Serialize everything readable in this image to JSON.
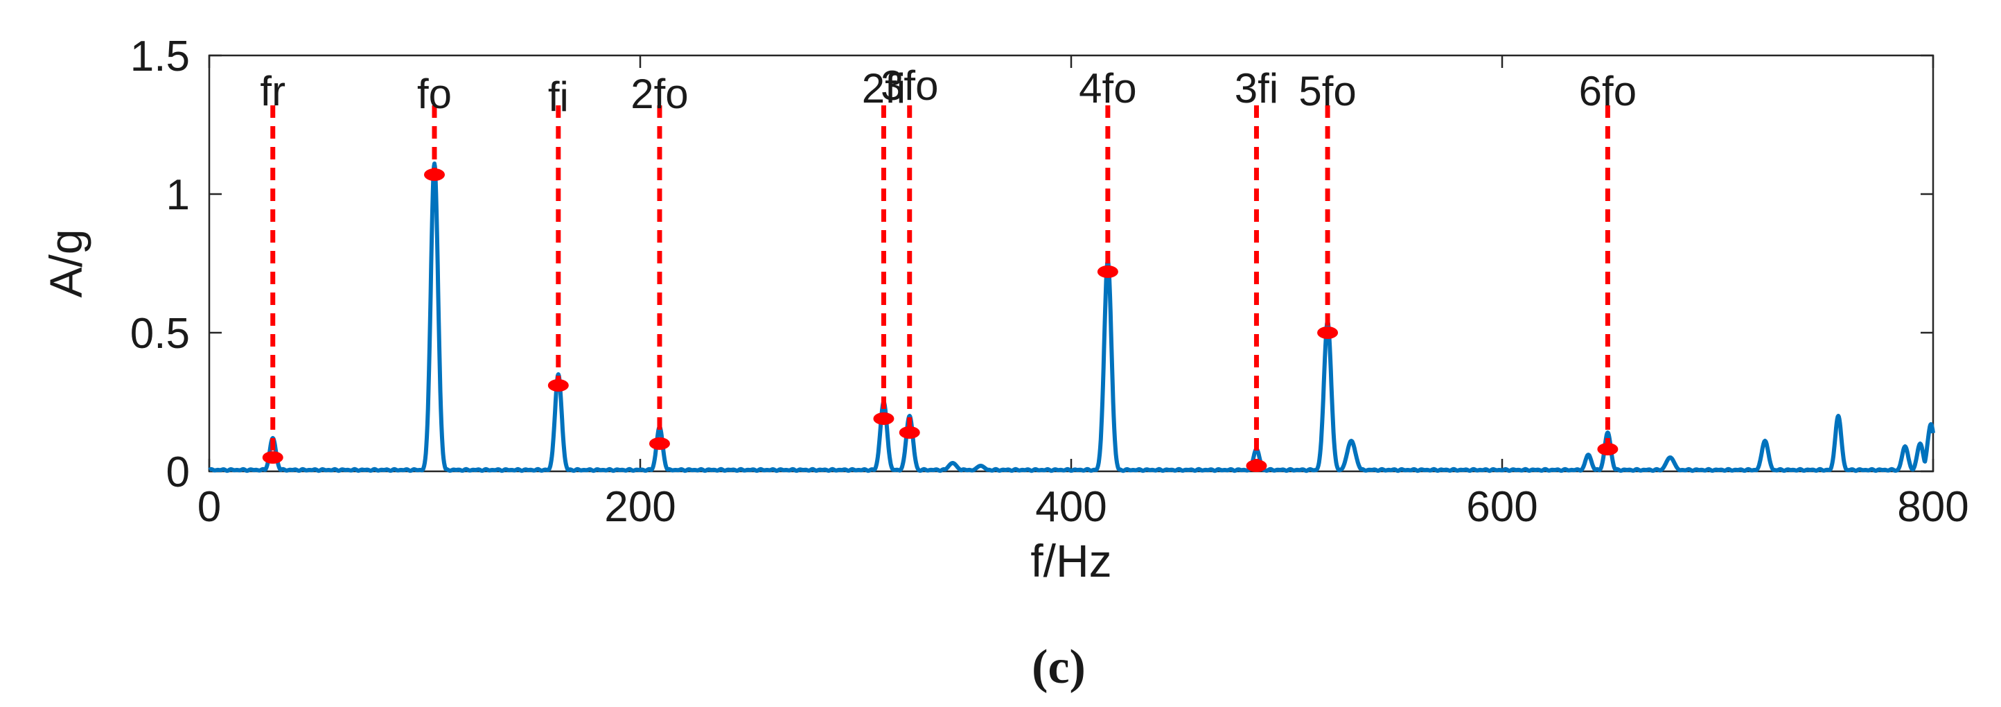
{
  "chart_data": {
    "type": "line",
    "title": "",
    "caption": "(c)",
    "xlabel": "f/Hz",
    "ylabel": "A/g",
    "xlim": [
      0,
      800
    ],
    "ylim": [
      0,
      1.5
    ],
    "xticks": [
      0,
      200,
      400,
      600,
      800
    ],
    "yticks": [
      0,
      0.5,
      1,
      1.5
    ],
    "xtick_labels": [
      "0",
      "200",
      "400",
      "600",
      "800"
    ],
    "ytick_labels": [
      "0",
      "0.5",
      "1",
      "1.5"
    ],
    "grid": false,
    "series": [
      {
        "color": "#0072BD",
        "baseline": 0.005,
        "peaks": [
          {
            "x": 29.5,
            "y": 0.12,
            "w": 2.2
          },
          {
            "x": 104.5,
            "y": 1.11,
            "w": 2.6
          },
          {
            "x": 162,
            "y": 0.35,
            "w": 2.4
          },
          {
            "x": 209,
            "y": 0.16,
            "w": 2.2
          },
          {
            "x": 313,
            "y": 0.25,
            "w": 2.4
          },
          {
            "x": 325,
            "y": 0.2,
            "w": 2.4
          },
          {
            "x": 345,
            "y": 0.03,
            "w": 3.0
          },
          {
            "x": 358,
            "y": 0.02,
            "w": 3.0
          },
          {
            "x": 417,
            "y": 0.76,
            "w": 2.6
          },
          {
            "x": 486,
            "y": 0.08,
            "w": 2.2
          },
          {
            "x": 519,
            "y": 0.54,
            "w": 2.6
          },
          {
            "x": 530,
            "y": 0.11,
            "w": 3.0
          },
          {
            "x": 640,
            "y": 0.06,
            "w": 2.2
          },
          {
            "x": 649,
            "y": 0.14,
            "w": 2.2
          },
          {
            "x": 678,
            "y": 0.05,
            "w": 3.0
          },
          {
            "x": 722,
            "y": 0.11,
            "w": 2.4
          },
          {
            "x": 756,
            "y": 0.2,
            "w": 2.2
          },
          {
            "x": 787,
            "y": 0.09,
            "w": 2.2
          },
          {
            "x": 794,
            "y": 0.1,
            "w": 2.2
          },
          {
            "x": 799,
            "y": 0.17,
            "w": 2.4
          }
        ]
      }
    ],
    "markers": [
      {
        "label": "fr",
        "x": 29.5,
        "y": 0.05,
        "label_y": 1.37
      },
      {
        "label": "fo",
        "x": 104.5,
        "y": 1.07,
        "label_y": 1.36
      },
      {
        "label": "fi",
        "x": 162,
        "y": 0.31,
        "label_y": 1.35
      },
      {
        "label": "2fo",
        "x": 209,
        "y": 0.1,
        "label_y": 1.36
      },
      {
        "label": "2fi",
        "x": 313,
        "y": 0.19,
        "label_y": 1.38
      },
      {
        "label": "3fo",
        "x": 325,
        "y": 0.14,
        "label_y": 1.39
      },
      {
        "label": "4fo",
        "x": 417,
        "y": 0.72,
        "label_y": 1.38
      },
      {
        "label": "3fi",
        "x": 486,
        "y": 0.02,
        "label_y": 1.38
      },
      {
        "label": "5fo",
        "x": 519,
        "y": 0.5,
        "label_y": 1.37
      },
      {
        "label": "6fo",
        "x": 649,
        "y": 0.08,
        "label_y": 1.37
      }
    ],
    "marker_color": "#FF0000"
  }
}
